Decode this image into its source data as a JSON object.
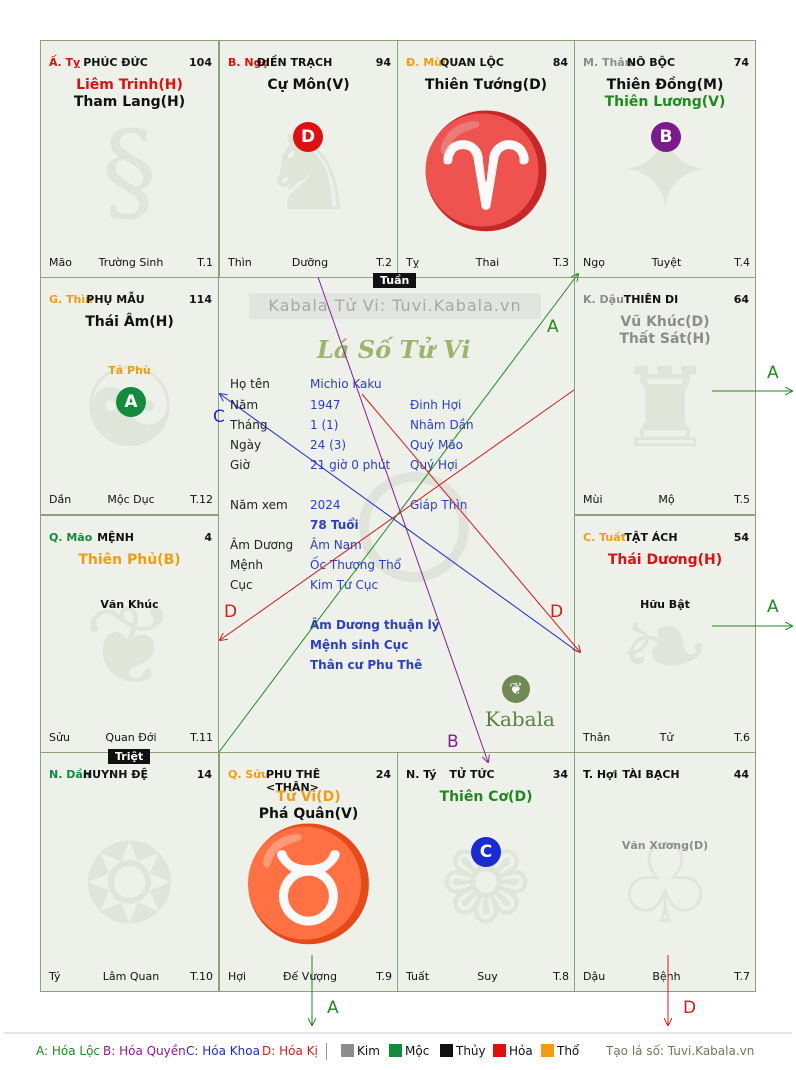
{
  "colors": {
    "hoa_loc": "#1e8a1e",
    "hoa_quyen": "#8b1a9b",
    "hoa_khoa": "#1b2bd4",
    "hoa_ki": "#d21c1c",
    "kim": "#8c8c8c",
    "moc": "#138a3c",
    "thuy": "#111111",
    "hoa": "#e01010",
    "tho": "#f39c12"
  },
  "palaces": {
    "ty": {
      "can_chi": "Ấ. Tỵ",
      "name": "PHÚC ĐỨC",
      "value": "104",
      "star1": "Liêm Trinh(H)",
      "star2": "Tham Lang(H)",
      "branch": "Mão",
      "phase": "Trường Sinh",
      "tnum": "T.1"
    },
    "ngo": {
      "can_chi": "B. Ngọ",
      "name": "ĐIỀN TRẠCH",
      "value": "94",
      "star1": "Cự Môn(V)",
      "branch": "Thìn",
      "phase": "Dưỡng",
      "tnum": "T.2",
      "circle": "D"
    },
    "mui": {
      "can_chi": "Đ. Mùi",
      "name": "QUAN LỘC",
      "value": "84",
      "star1": "Thiên Tướng(D)",
      "branch": "Tỵ",
      "phase": "Thai",
      "tnum": "T.3"
    },
    "than": {
      "can_chi": "M. Thân",
      "name": "NÔ BỘC",
      "value": "74",
      "star1": "Thiên Đồng(M)",
      "star2": "Thiên Lương(V)",
      "branch": "Ngọ",
      "phase": "Tuyệt",
      "tnum": "T.4",
      "circle": "B"
    },
    "thin": {
      "can_chi": "G. Thìn",
      "name": "PHỤ MẪU",
      "value": "114",
      "star1": "Thái Âm(H)",
      "minor": "Tả Phù",
      "branch": "Dần",
      "phase": "Mộc Dục",
      "tnum": "T.12",
      "circle": "A"
    },
    "dau": {
      "can_chi": "K. Dậu",
      "name": "THIÊN DI",
      "value": "64",
      "star1": "Vũ Khúc(D)",
      "star2": "Thất Sát(H)",
      "branch": "Mùi",
      "phase": "Mộ",
      "tnum": "T.5"
    },
    "mao": {
      "can_chi": "Q. Mão",
      "name": "MỆNH",
      "value": "4",
      "star1": "Thiên Phủ(B)",
      "minor": "Văn Khúc",
      "branch": "Sửu",
      "phase": "Quan Đới",
      "tnum": "T.11"
    },
    "tuat": {
      "can_chi": "C. Tuất",
      "name": "TẬT ÁCH",
      "value": "54",
      "star1": "Thái Dương(H)",
      "minor": "Hữu Bật",
      "branch": "Thân",
      "phase": "Tử",
      "tnum": "T.6"
    },
    "dan": {
      "can_chi": "N. Dần",
      "name": "HUYNH ĐỆ",
      "value": "14",
      "branch": "Tý",
      "phase": "Lâm Quan",
      "tnum": "T.10"
    },
    "suu": {
      "can_chi": "Q. Sửu",
      "name": "PHU THÊ <THÂN>",
      "value": "24",
      "star1": "Tử Vi(D)",
      "star2": "Phá Quân(V)",
      "branch": "Hợi",
      "phase": "Đế Vượng",
      "tnum": "T.9"
    },
    "tyy": {
      "can_chi": "N. Tý",
      "name": "TỬ TỨC",
      "value": "34",
      "star1": "Thiên Cơ(D)",
      "branch": "Tuất",
      "phase": "Suy",
      "tnum": "T.8",
      "circle": "C"
    },
    "hoi": {
      "can_chi": "T. Hợi",
      "name": "TÀI BẠCH",
      "value": "44",
      "minor": "Văn Xương(D)",
      "branch": "Dậu",
      "phase": "Bệnh",
      "tnum": "T.7"
    }
  },
  "center": {
    "watermark": "Kabala Tử Vi: Tuvi.Kabala.vn",
    "title": "Lá Số Tử Vi",
    "rows": [
      {
        "label": "Họ tên",
        "v1": "Michio Kaku",
        "v2": ""
      },
      {
        "label": "Năm",
        "v1": "1947",
        "v2": "Đinh Hợi"
      },
      {
        "label": "Tháng",
        "v1": "1  (1)",
        "v2": "Nhâm Dần"
      },
      {
        "label": "Ngày",
        "v1": "24  (3)",
        "v2": "Quý Mão"
      },
      {
        "label": "Giờ",
        "v1": "21 giờ 0 phút",
        "v2": "Quý Hợi"
      }
    ],
    "nam_xem_label": "Năm xem",
    "nam_xem": "2024",
    "nam_xem_can": "Giáp Thìn",
    "tuoi": "78 Tuổi",
    "rows2": [
      {
        "label": "Âm Dương",
        "v1": "Âm Nam"
      },
      {
        "label": "Mệnh",
        "v1": "Ốc Thượng Thổ"
      },
      {
        "label": "Cục",
        "v1": "Kim Tứ Cục"
      }
    ],
    "notes": [
      "Âm Dương thuận lý",
      "Mệnh sinh Cục",
      "Thân cư Phu Thê"
    ],
    "logo": "Kabala"
  },
  "tags": {
    "tuan": "Tuần",
    "triet": "Triệt"
  },
  "arrow_labels": {
    "a": "A",
    "b": "B",
    "c": "C",
    "d": "D"
  },
  "legend": {
    "a": "A: Hóa Lộc",
    "b": "B: Hóa Quyền",
    "c": "C: Hóa Khoa",
    "d": "D: Hóa Kị",
    "kim": "Kim",
    "moc": "Mộc",
    "thuy": "Thủy",
    "hoa": "Hỏa",
    "tho": "Thổ",
    "site": "Tạo lá số: Tuvi.Kabala.vn"
  }
}
